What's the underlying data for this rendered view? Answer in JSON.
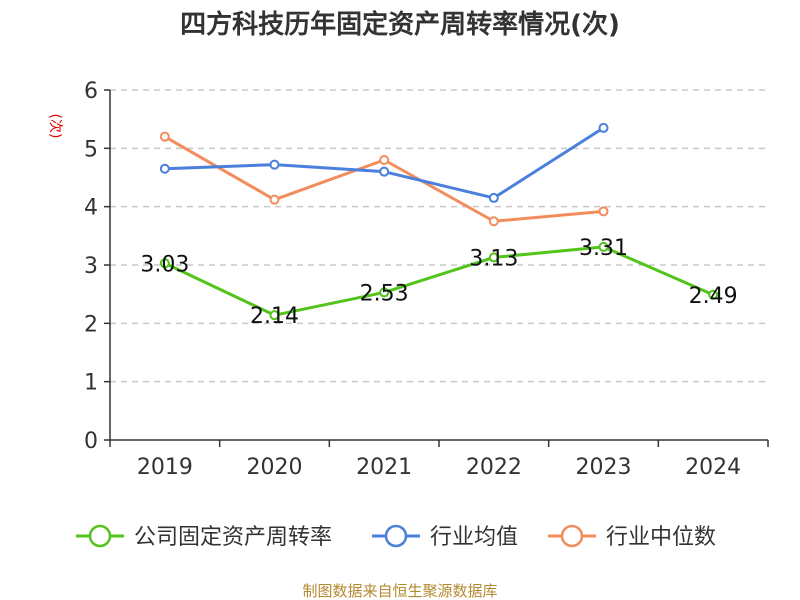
{
  "chart_data": {
    "type": "line",
    "title": "四方科技历年固定资产周转率情况(次)",
    "ylabel": "(次)",
    "categories": [
      "2019",
      "2020",
      "2021",
      "2022",
      "2023",
      "2024"
    ],
    "ylim": [
      0,
      6
    ],
    "yticks": [
      "0",
      "1",
      "2",
      "3",
      "4",
      "5",
      "6"
    ],
    "grid": true,
    "legend_position": "bottom",
    "series": [
      {
        "name": "公司固定资产周转率",
        "color": "#52c41a",
        "values": [
          3.03,
          2.14,
          2.53,
          3.13,
          3.31,
          2.49
        ],
        "labels": [
          "3.03",
          "2.14",
          "2.53",
          "3.13",
          "3.31",
          "2.49"
        ]
      },
      {
        "name": "行业均值",
        "color": "#4a7fdb",
        "values": [
          4.65,
          4.72,
          4.6,
          4.15,
          5.35,
          null
        ]
      },
      {
        "name": "行业中位数",
        "color": "#f28d5b",
        "values": [
          5.2,
          4.12,
          4.8,
          3.75,
          3.92,
          null
        ]
      }
    ],
    "source": "制图数据来自恒生聚源数据库"
  }
}
